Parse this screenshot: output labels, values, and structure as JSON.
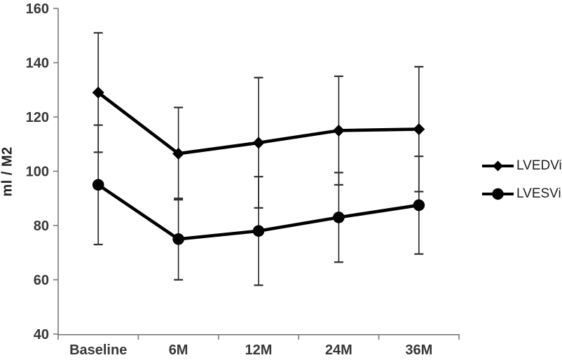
{
  "chart_data": {
    "type": "line",
    "title": "",
    "xlabel": "",
    "ylabel": "ml / M2",
    "ylim": [
      40,
      160
    ],
    "yticks": [
      40,
      60,
      80,
      100,
      120,
      140,
      160
    ],
    "categories": [
      "Baseline",
      "6M",
      "12M",
      "24M",
      "36M"
    ],
    "grid": false,
    "legend_position": "right-middle",
    "series": [
      {
        "name": "LVEDVi",
        "marker": "diamond",
        "values": [
          129,
          106.5,
          110.5,
          115,
          115.5
        ],
        "error_bars": [
          22,
          17,
          24,
          20,
          23
        ],
        "error_upper": [
          151,
          123.5,
          134.5,
          135,
          138.5
        ],
        "error_lower": [
          107,
          89.5,
          86.5,
          95,
          92.5
        ]
      },
      {
        "name": "LVESVi",
        "marker": "circle",
        "values": [
          95,
          75,
          78,
          83,
          87.5
        ],
        "error_bars": [
          22,
          15,
          20,
          16.5,
          18
        ],
        "error_upper": [
          117,
          90,
          98,
          99.5,
          105.5
        ],
        "error_lower": [
          73,
          60,
          58,
          66.5,
          69.5
        ]
      }
    ],
    "colors": {
      "series_line": "#000000",
      "marker_fill": "#000000",
      "error_bar": "#2e2e2e",
      "axis_line": "#7a7a7a",
      "tick_label": "#383838",
      "legend_text": "#1f1f1f",
      "background": "#ffffff"
    }
  }
}
